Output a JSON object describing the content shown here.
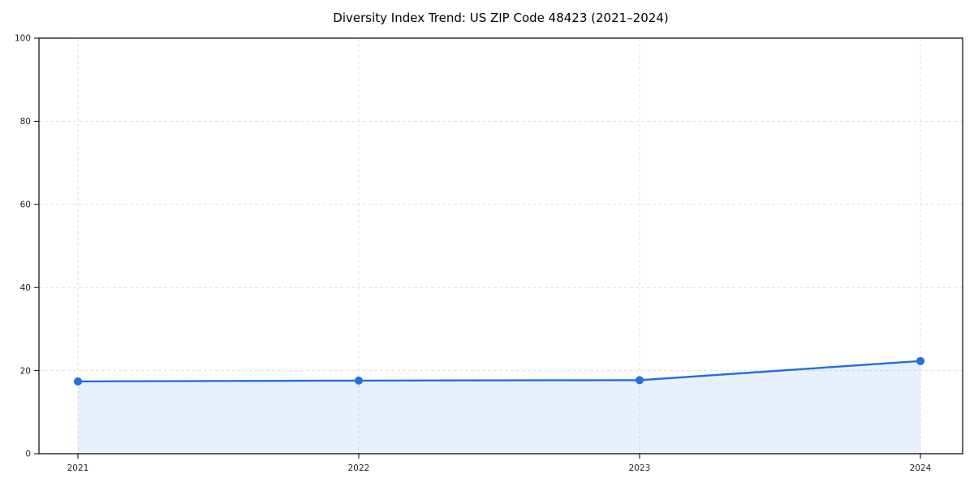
{
  "chart_data": {
    "type": "line",
    "title": "Diversity Index Trend: US ZIP Code 48423 (2021–2024)",
    "categories": [
      "2021",
      "2022",
      "2023",
      "2024"
    ],
    "values": [
      17.4,
      17.6,
      17.7,
      22.3
    ],
    "xlabel": "",
    "ylabel": "",
    "ylim": [
      0,
      100
    ],
    "yticks": [
      0,
      20,
      40,
      60,
      80,
      100
    ],
    "grid": "dashed-both-axes",
    "legend": "none",
    "area_fill": true,
    "marker": "circle",
    "line_color": "#2070dd",
    "fill_color": "rgba(32, 112, 221, 0.10)",
    "grid_color": "#e0e0e0",
    "frame_color": "#000000",
    "tick_label_color": "#262626"
  }
}
